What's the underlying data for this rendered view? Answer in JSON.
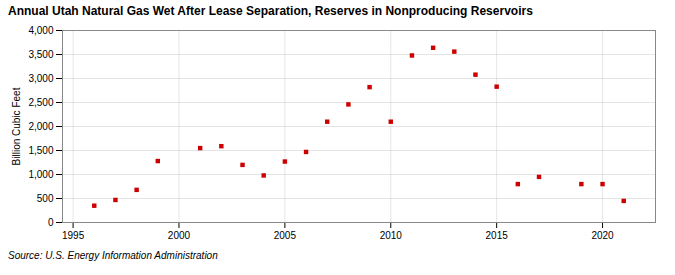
{
  "chart_data": {
    "type": "scatter",
    "title": "Annual Utah Natural Gas Wet After Lease Separation, Reserves in Nonproducing Reservoirs",
    "ylabel": "Billion Cubic Feet",
    "source": "Source: U.S. Energy Information Administration",
    "x": [
      1996,
      1997,
      1998,
      1999,
      2001,
      2002,
      2003,
      2004,
      2005,
      2006,
      2007,
      2008,
      2009,
      2010,
      2011,
      2012,
      2013,
      2014,
      2015,
      2016,
      2017,
      2019,
      2020,
      2021
    ],
    "values": [
      350,
      470,
      680,
      1280,
      1550,
      1590,
      1200,
      980,
      1270,
      1470,
      2100,
      2460,
      2820,
      2100,
      3480,
      3640,
      3560,
      3080,
      2830,
      800,
      950,
      800,
      800,
      450
    ],
    "color": "#cc0000",
    "marker": "square",
    "xlim": [
      1994.5,
      2022.5
    ],
    "xticks": [
      1995,
      2000,
      2005,
      2010,
      2015,
      2020
    ],
    "ylim": [
      0,
      4000
    ],
    "yticks": [
      0,
      500,
      {
        "value": 1000,
        "label": "1,000"
      },
      {
        "value": 1500,
        "label": "1,500"
      },
      {
        "value": 2000,
        "label": "2,000"
      },
      {
        "value": 2500,
        "label": "2,500"
      },
      {
        "value": 3000,
        "label": "3,000"
      },
      {
        "value": 3500,
        "label": "3,500"
      },
      {
        "value": 4000,
        "label": "4,000"
      }
    ],
    "grid": true
  }
}
